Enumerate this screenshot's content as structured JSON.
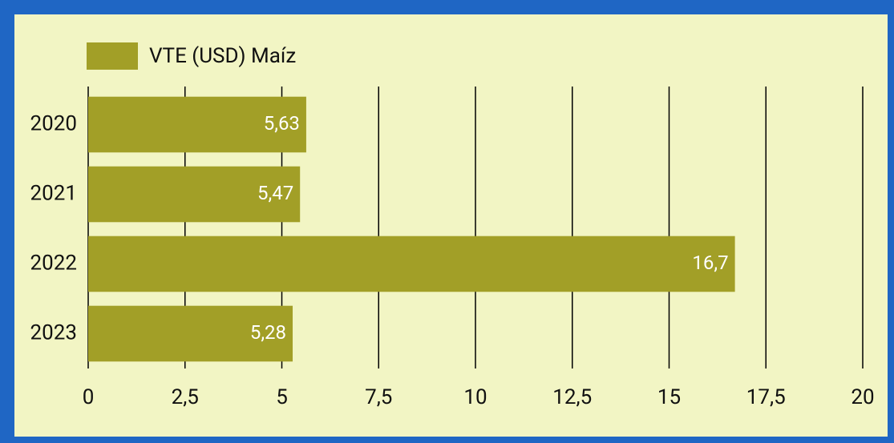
{
  "chart_data": {
    "type": "bar",
    "orientation": "horizontal",
    "categories": [
      "2020",
      "2021",
      "2022",
      "2023"
    ],
    "series": [
      {
        "name": "VTE (USD) Maíz",
        "color": "#a29f27",
        "values": [
          5.63,
          5.47,
          16.7,
          5.28
        ],
        "value_labels": [
          "5,63",
          "5,47",
          "16,7",
          "5,28"
        ]
      }
    ],
    "xlim": [
      0,
      20
    ],
    "xticks": [
      0,
      {
        "value": 2.5,
        "label": "2,5"
      },
      5,
      {
        "value": 7.5,
        "label": "7,5"
      },
      10,
      {
        "value": 12.5,
        "label": "12,5"
      },
      15,
      {
        "value": 17.5,
        "label": "17,5"
      },
      20
    ],
    "grid": true,
    "legend": "top-left"
  }
}
